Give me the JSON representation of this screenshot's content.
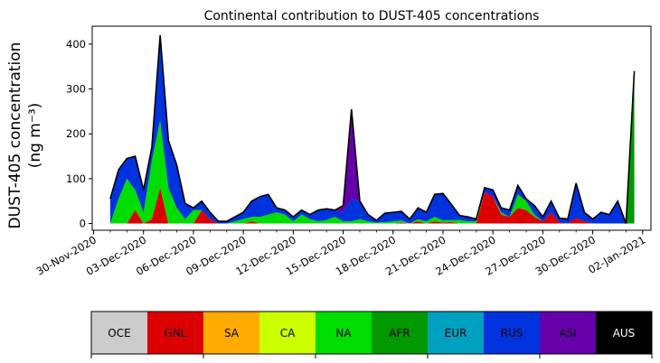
{
  "chart_data": {
    "type": "area",
    "title": "Continental contribution to DUST-405 concentrations",
    "ylabel_line1": "DUST-405 concentration",
    "ylabel_line2": "(ng m⁻³)",
    "ylim": [
      -15,
      440
    ],
    "yticks": [
      0,
      100,
      200,
      300,
      400
    ],
    "xlim": [
      "2020-11-29T22:00",
      "2021-01-02T12:00"
    ],
    "xticks": [
      "2020-11-30",
      "2020-12-03",
      "2020-12-06",
      "2020-12-09",
      "2020-12-12",
      "2020-12-15",
      "2020-12-18",
      "2020-12-21",
      "2020-12-24",
      "2020-12-27",
      "2020-12-30",
      "2021-01-02"
    ],
    "xtick_labels": [
      "30-Nov-2020",
      "03-Dec-2020",
      "06-Dec-2020",
      "09-Dec-2020",
      "12-Dec-2020",
      "15-Dec-2020",
      "18-Dec-2020",
      "21-Dec-2020",
      "24-Dec-2020",
      "27-Dec-2020",
      "30-Dec-2020",
      "02-Jan-2021"
    ],
    "x": [
      "2020-12-01T00:00",
      "2020-12-01T12:00",
      "2020-12-02T00:00",
      "2020-12-02T12:00",
      "2020-12-03T00:00",
      "2020-12-03T12:00",
      "2020-12-04T00:00",
      "2020-12-04T12:00",
      "2020-12-05T00:00",
      "2020-12-05T12:00",
      "2020-12-06T00:00",
      "2020-12-06T12:00",
      "2020-12-07T00:00",
      "2020-12-07T12:00",
      "2020-12-08T00:00",
      "2020-12-08T12:00",
      "2020-12-09T00:00",
      "2020-12-09T12:00",
      "2020-12-10T00:00",
      "2020-12-10T12:00",
      "2020-12-11T00:00",
      "2020-12-11T12:00",
      "2020-12-12T00:00",
      "2020-12-12T12:00",
      "2020-12-13T00:00",
      "2020-12-13T12:00",
      "2020-12-14T00:00",
      "2020-12-14T12:00",
      "2020-12-15T00:00",
      "2020-12-15T12:00",
      "2020-12-16T00:00",
      "2020-12-16T12:00",
      "2020-12-17T00:00",
      "2020-12-17T12:00",
      "2020-12-18T00:00",
      "2020-12-18T12:00",
      "2020-12-19T00:00",
      "2020-12-19T12:00",
      "2020-12-20T00:00",
      "2020-12-20T12:00",
      "2020-12-21T00:00",
      "2020-12-21T12:00",
      "2020-12-22T00:00",
      "2020-12-22T12:00",
      "2020-12-23T00:00",
      "2020-12-23T12:00",
      "2020-12-24T00:00",
      "2020-12-24T12:00",
      "2020-12-25T00:00",
      "2020-12-25T12:00",
      "2020-12-26T00:00",
      "2020-12-26T12:00",
      "2020-12-27T00:00",
      "2020-12-27T12:00",
      "2020-12-28T00:00",
      "2020-12-28T12:00",
      "2020-12-29T00:00",
      "2020-12-29T12:00",
      "2020-12-30T00:00",
      "2020-12-30T12:00",
      "2020-12-31T00:00",
      "2020-12-31T12:00",
      "2021-01-01T00:00",
      "2021-01-01T12:00"
    ],
    "series": [
      {
        "name": "OCE",
        "color": "#cccccc",
        "values": [
          0,
          0,
          0,
          0,
          0,
          0,
          0,
          0,
          0,
          0,
          0,
          0,
          0,
          0,
          0,
          0,
          0,
          0,
          0,
          0,
          0,
          0,
          0,
          0,
          0,
          0,
          0,
          0,
          0,
          0,
          0,
          0,
          0,
          0,
          0,
          0,
          0,
          0,
          0,
          0,
          0,
          0,
          0,
          0,
          0,
          0,
          0,
          0,
          0,
          0,
          0,
          0,
          0,
          0,
          0,
          0,
          0,
          0,
          0,
          0,
          0,
          0,
          0,
          0
        ]
      },
      {
        "name": "GNL",
        "color": "#dd0000",
        "values": [
          0,
          0,
          0,
          30,
          0,
          10,
          80,
          0,
          0,
          0,
          0,
          30,
          10,
          0,
          0,
          0,
          0,
          5,
          0,
          0,
          0,
          0,
          0,
          0,
          0,
          0,
          0,
          0,
          0,
          0,
          0,
          0,
          0,
          0,
          0,
          2,
          0,
          5,
          0,
          5,
          2,
          3,
          0,
          0,
          0,
          70,
          60,
          20,
          15,
          35,
          30,
          15,
          5,
          25,
          2,
          0,
          12,
          5,
          0,
          0,
          0,
          0,
          0,
          0
        ]
      },
      {
        "name": "SA",
        "color": "#ffaa00",
        "values": [
          0,
          0,
          0,
          0,
          0,
          0,
          0,
          0,
          0,
          0,
          0,
          0,
          0,
          0,
          0,
          0,
          0,
          0,
          0,
          0,
          0,
          0,
          0,
          0,
          0,
          0,
          0,
          0,
          0,
          0,
          0,
          0,
          0,
          0,
          0,
          0,
          0,
          0,
          0,
          0,
          0,
          0,
          0,
          0,
          0,
          0,
          0,
          0,
          0,
          0,
          0,
          0,
          0,
          0,
          0,
          0,
          0,
          0,
          0,
          0,
          0,
          0,
          0,
          0
        ]
      },
      {
        "name": "CA",
        "color": "#ccff00",
        "values": [
          0,
          0,
          0,
          0,
          0,
          0,
          0,
          0,
          0,
          0,
          0,
          0,
          0,
          0,
          0,
          0,
          0,
          0,
          0,
          0,
          0,
          0,
          0,
          0,
          0,
          0,
          0,
          0,
          0,
          0,
          0,
          0,
          0,
          0,
          0,
          0,
          0,
          0,
          0,
          0,
          0,
          0,
          0,
          0,
          0,
          0,
          0,
          0,
          0,
          0,
          0,
          0,
          0,
          0,
          0,
          0,
          0,
          0,
          0,
          0,
          0,
          0,
          0,
          0
        ]
      },
      {
        "name": "NA",
        "color": "#00dd00",
        "values": [
          0,
          55,
          100,
          45,
          25,
          130,
          150,
          80,
          35,
          10,
          30,
          0,
          0,
          0,
          0,
          5,
          10,
          10,
          15,
          20,
          25,
          20,
          5,
          20,
          10,
          5,
          8,
          15,
          5,
          5,
          10,
          5,
          2,
          3,
          5,
          5,
          0,
          5,
          5,
          10,
          5,
          5,
          8,
          5,
          5,
          0,
          0,
          5,
          0,
          30,
          20,
          5,
          0,
          0,
          0,
          0,
          0,
          0,
          0,
          0,
          0,
          0,
          0,
          0
        ]
      },
      {
        "name": "AFR",
        "color": "#009900",
        "values": [
          0,
          0,
          0,
          0,
          0,
          0,
          0,
          0,
          0,
          0,
          0,
          0,
          0,
          0,
          0,
          0,
          0,
          0,
          0,
          0,
          0,
          0,
          0,
          0,
          0,
          0,
          0,
          0,
          0,
          0,
          0,
          0,
          0,
          0,
          0,
          0,
          0,
          0,
          0,
          0,
          0,
          0,
          0,
          0,
          0,
          0,
          0,
          0,
          0,
          0,
          0,
          0,
          0,
          0,
          0,
          0,
          0,
          0,
          0,
          0,
          0,
          0,
          0,
          340
        ]
      },
      {
        "name": "EUR",
        "color": "#00a0c0",
        "values": [
          0,
          0,
          0,
          0,
          0,
          0,
          0,
          0,
          0,
          0,
          0,
          0,
          0,
          0,
          0,
          0,
          0,
          0,
          0,
          0,
          0,
          0,
          0,
          0,
          0,
          0,
          0,
          0,
          0,
          0,
          0,
          0,
          0,
          0,
          0,
          0,
          0,
          0,
          0,
          0,
          0,
          0,
          0,
          0,
          0,
          0,
          0,
          0,
          0,
          0,
          0,
          0,
          0,
          0,
          0,
          0,
          0,
          0,
          0,
          0,
          0,
          0,
          0,
          0
        ]
      },
      {
        "name": "RUS",
        "color": "#0033dd",
        "values": [
          55,
          65,
          45,
          75,
          50,
          30,
          185,
          100,
          95,
          35,
          5,
          20,
          15,
          5,
          5,
          10,
          15,
          35,
          45,
          45,
          10,
          10,
          10,
          10,
          10,
          25,
          25,
          15,
          20,
          50,
          40,
          15,
          5,
          20,
          20,
          20,
          10,
          25,
          20,
          50,
          60,
          35,
          10,
          10,
          5,
          10,
          15,
          10,
          15,
          20,
          5,
          20,
          10,
          25,
          10,
          10,
          78,
          20,
          10,
          25,
          20,
          50,
          0,
          0
        ]
      },
      {
        "name": "ASI",
        "color": "#6600aa",
        "values": [
          0,
          0,
          0,
          0,
          0,
          0,
          5,
          5,
          0,
          0,
          0,
          0,
          0,
          0,
          0,
          0,
          0,
          0,
          0,
          0,
          0,
          0,
          0,
          0,
          0,
          0,
          0,
          0,
          15,
          200,
          0,
          0,
          0,
          0,
          0,
          0,
          0,
          0,
          0,
          0,
          0,
          0,
          0,
          0,
          0,
          0,
          0,
          0,
          0,
          0,
          0,
          0,
          0,
          0,
          0,
          0,
          0,
          0,
          0,
          0,
          0,
          0,
          0,
          0
        ]
      },
      {
        "name": "AUS",
        "color": "#000000",
        "values": [
          0,
          0,
          0,
          0,
          0,
          0,
          0,
          0,
          0,
          0,
          0,
          0,
          0,
          0,
          0,
          0,
          0,
          0,
          0,
          0,
          0,
          0,
          0,
          0,
          0,
          0,
          0,
          0,
          0,
          0,
          0,
          0,
          0,
          0,
          0,
          0,
          0,
          0,
          0,
          0,
          0,
          0,
          0,
          0,
          0,
          0,
          0,
          0,
          0,
          0,
          0,
          0,
          0,
          0,
          0,
          0,
          0,
          0,
          0,
          0,
          0,
          0,
          0,
          0
        ]
      }
    ],
    "legend_placement": "bottom",
    "legend_text_colors": [
      "#000000",
      "#000000",
      "#000000",
      "#000000",
      "#000000",
      "#000000",
      "#000000",
      "#000000",
      "#000000",
      "#ffffff"
    ],
    "grid": false
  }
}
